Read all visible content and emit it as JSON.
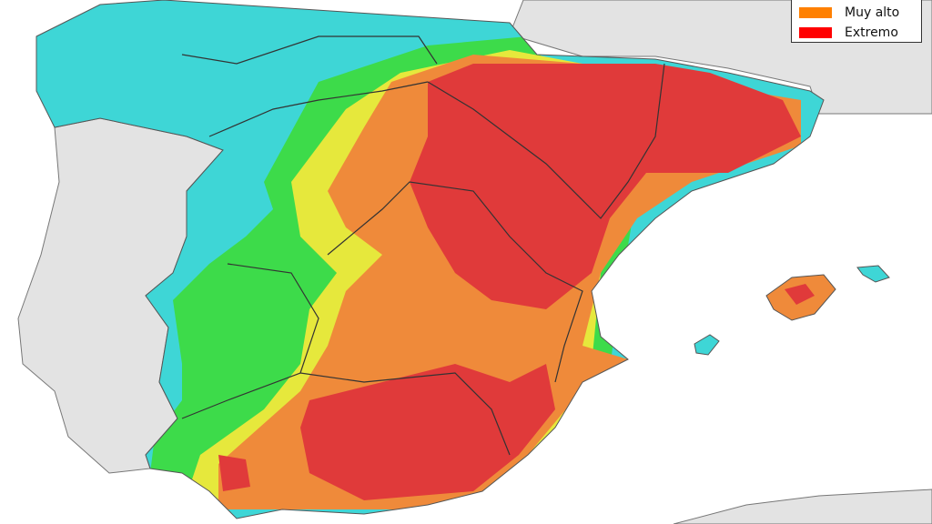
{
  "legend": {
    "items": [
      {
        "label": "Muy alto",
        "color": "#ff8000"
      },
      {
        "label": "Extremo",
        "color": "#ff0000"
      }
    ]
  }
}
